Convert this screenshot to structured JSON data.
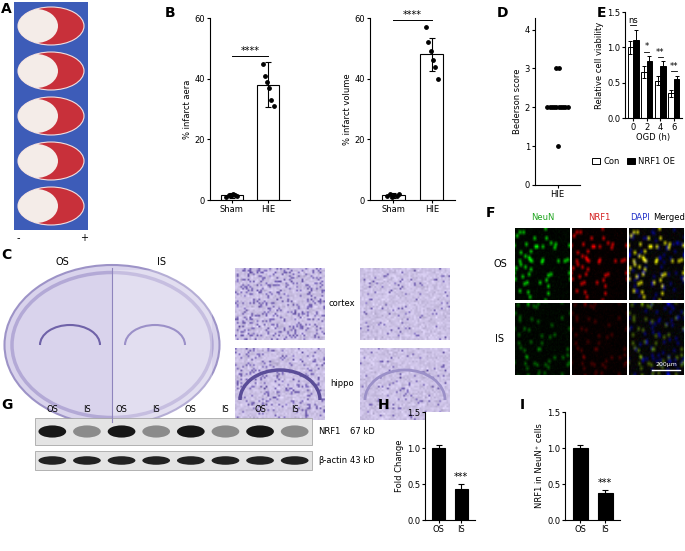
{
  "chart_data": [
    {
      "panel": "B",
      "type": "bar",
      "y_label": "% infarct aera",
      "categories": [
        "Sham",
        "HIE"
      ],
      "values": [
        1.5,
        38
      ],
      "errors": [
        0.8,
        7.5
      ],
      "points": [
        [
          1.0,
          1.8,
          1.2,
          2.0,
          1.5,
          1.4
        ],
        [
          45,
          41,
          39,
          37,
          33,
          31
        ]
      ],
      "color": "#ffffff",
      "ylim": [
        0,
        60
      ],
      "yticks": [
        0,
        20,
        40,
        60
      ],
      "annotations": [
        "****"
      ]
    },
    {
      "type": "bar",
      "y_label": "% infarct volume",
      "categories": [
        "Sham",
        "HIE"
      ],
      "values": [
        1.5,
        48
      ],
      "errors": [
        0.8,
        5.5
      ],
      "points": [
        [
          1.2,
          1.9,
          1.0,
          1.6,
          1.4,
          2.0
        ],
        [
          57,
          52,
          49,
          46,
          44,
          40
        ]
      ],
      "color": "#ffffff",
      "ylim": [
        0,
        60
      ],
      "yticks": [
        0,
        20,
        40,
        60
      ],
      "annotations": [
        "****"
      ]
    },
    {
      "panel": "D",
      "type": "scatter",
      "y_label": "Bederson score",
      "categories": [
        "HIE"
      ],
      "points": [
        [
          3,
          3,
          2,
          2,
          2,
          2,
          2,
          2,
          2,
          2,
          2,
          2,
          1
        ]
      ],
      "color": "#000000",
      "ylim": [
        0,
        4.3
      ],
      "yticks": [
        0,
        1,
        2,
        3,
        4
      ]
    },
    {
      "panel": "E",
      "type": "bar",
      "x_label": "OGD (h)",
      "y_label": "Relative cell viability",
      "categories": [
        "0",
        "2",
        "4",
        "6"
      ],
      "series": [
        {
          "name": "Con",
          "color": "#ffffff",
          "values": [
            1.0,
            0.65,
            0.53,
            0.35
          ],
          "errors": [
            0.09,
            0.08,
            0.07,
            0.05
          ]
        },
        {
          "name": "NRF1 OE",
          "color": "#000000",
          "values": [
            1.1,
            0.8,
            0.73,
            0.55
          ],
          "errors": [
            0.15,
            0.08,
            0.07,
            0.05
          ]
        }
      ],
      "ylim": [
        0,
        1.5
      ],
      "yticks": [
        {
          "value": 0,
          "label": "0.0"
        },
        {
          "value": 0.5,
          "label": "0.5"
        },
        {
          "value": 1,
          "label": "1.0"
        },
        {
          "value": 1.5,
          "label": "1.5"
        }
      ],
      "annotations": [
        "ns",
        "*",
        "**",
        "**"
      ],
      "legend": "upper center"
    },
    {
      "panel": "H",
      "type": "bar",
      "y_label": "Fold Change",
      "categories": [
        "OS",
        "IS"
      ],
      "values": [
        1.0,
        0.43
      ],
      "errors": [
        0.04,
        0.07
      ],
      "color": "#000000",
      "ylim": [
        0,
        1.5
      ],
      "yticks": [
        {
          "value": 0,
          "label": "0.0"
        },
        {
          "value": 0.5,
          "label": "0.5"
        },
        {
          "value": 1,
          "label": "1.0"
        },
        {
          "value": 1.5,
          "label": "1.5"
        }
      ],
      "annotations": [
        "***"
      ]
    },
    {
      "panel": "I",
      "type": "bar",
      "y_label": "NRF1 in NeuN⁺ cells",
      "categories": [
        "OS",
        "IS"
      ],
      "values": [
        1.0,
        0.37
      ],
      "errors": [
        0.04,
        0.05
      ],
      "color": "#000000",
      "ylim": [
        0,
        1.5
      ],
      "yticks": [
        {
          "value": 0,
          "label": "0.0"
        },
        {
          "value": 0.5,
          "label": "0.5"
        },
        {
          "value": 1,
          "label": "1.0"
        },
        {
          "value": 1.5,
          "label": "1.5"
        }
      ],
      "annotations": [
        "***"
      ]
    }
  ],
  "images": {
    "A": {
      "panel": "A",
      "marks": [
        "-",
        "+"
      ]
    },
    "C": {
      "panel": "C",
      "columns": [
        "OS",
        "IS"
      ],
      "regions": [
        "cortex",
        "hippo"
      ]
    },
    "F": {
      "panel": "F",
      "channels": [
        "NeuN",
        "NRF1",
        "DAPI",
        "Merged"
      ],
      "rows": [
        "OS",
        "IS"
      ],
      "scale_bar": "200μm"
    },
    "G": {
      "panel": "G",
      "lanes": [
        "OS",
        "IS",
        "OS",
        "IS",
        "OS",
        "IS",
        "OS",
        "IS"
      ],
      "bands": [
        {
          "name": "NRF1",
          "size": "67 kD"
        },
        {
          "name": "β-actin",
          "size": "43 kD"
        }
      ]
    }
  }
}
